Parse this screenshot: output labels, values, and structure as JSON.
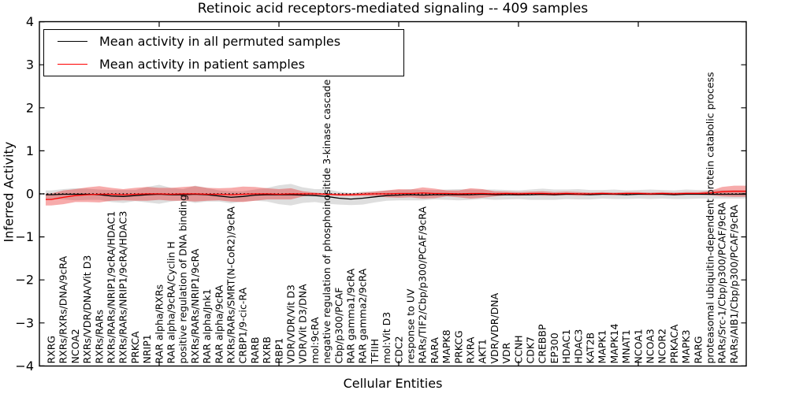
{
  "figure": {
    "title": "Retinoic acid receptors-mediated signaling -- 409 samples",
    "xlabel": "Cellular Entities",
    "ylabel": "Inferred Activity",
    "legend": {
      "items": [
        {
          "label": "Mean activity in all permuted samples",
          "color": "#000000"
        },
        {
          "label": "Mean activity in patient samples",
          "color": "#ff0000"
        }
      ]
    }
  },
  "chart_data": {
    "type": "line",
    "title": "Retinoic acid receptors-mediated signaling -- 409 samples",
    "xlabel": "Cellular Entities",
    "ylabel": "Inferred Activity",
    "ylim": [
      -4,
      4
    ],
    "yticks": [
      4,
      3,
      2,
      1,
      0,
      -1,
      -2,
      -3,
      -4
    ],
    "x_major_ticks": [
      10,
      20,
      30,
      40,
      50
    ],
    "grid": false,
    "legend_position": "upper left",
    "zero_line": {
      "style": "dotted",
      "color": "#000000"
    },
    "categories": [
      "RXRG",
      "RXRs/RXRs/DNA/9cRA",
      "NCOA2",
      "RXRs/VDR/DNA/Vit D3",
      "RXRs/RARs",
      "RXRs/RARs/NRIP1/9cRA/HDAC1",
      "RXRs/RARs/NRIP1/9cRA/HDAC3",
      "PRKCA",
      "NRIP1",
      "RAR alpha/RXRs",
      "RAR alpha/9cRA/Cyclin H",
      "positive regulation of DNA binding",
      "RXRs/RARs/NRIP1/9cRA",
      "RAR alpha/Jnk1",
      "RAR alpha/9cRA",
      "RXRs/RARs/SMRT(N-CoR2)/9cRA",
      "CRBP1/9-cic-RA",
      "RARB",
      "RXRB",
      "RBP1",
      "VDR/VDR/Vit D3",
      "VDR/Vit D3/DNA",
      "mol:9cRA",
      "negative regulation of phosphoinositide 3-kinase cascade",
      "Cbp/p300/PCAF",
      "RAR gamma1/9cRA",
      "RAR gamma2/9cRA",
      "TFIIH",
      "mol:Vit D3",
      "CDC2",
      "response to UV",
      "RARs/TIF2/Cbp/p300/PCAF/9cRA",
      "RARA",
      "MAPK8",
      "PRKCG",
      "RXRA",
      "AKT1",
      "VDR/VDR/DNA",
      "VDR",
      "CCNH",
      "CDK7",
      "CREBBP",
      "EP300",
      "HDAC1",
      "HDAC3",
      "KAT2B",
      "MAPK1",
      "MAPK14",
      "MNAT1",
      "NCOA1",
      "NCOA3",
      "NCOR2",
      "PRKACA",
      "MAPK3",
      "RARG",
      "proteasomal ubiquitin-dependent protein catabolic process",
      "RARs/Src-1/Cbp/p300/PCAF/9cRA",
      "RARs/AIB1/Cbp/p300/PCAF/9cRA"
    ],
    "series": [
      {
        "name": "Mean activity in all permuted samples",
        "color": "#000000",
        "band_color": "#000000",
        "band_opacity": 0.13,
        "mean": [
          -0.02,
          -0.01,
          -0.01,
          -0.01,
          -0.02,
          -0.05,
          -0.06,
          -0.04,
          -0.02,
          -0.01,
          -0.02,
          -0.02,
          -0.01,
          -0.02,
          -0.05,
          -0.08,
          -0.06,
          -0.03,
          -0.02,
          -0.02,
          -0.02,
          -0.03,
          -0.04,
          -0.06,
          -0.1,
          -0.12,
          -0.1,
          -0.07,
          -0.04,
          -0.03,
          -0.02,
          -0.03,
          -0.02,
          -0.02,
          -0.02,
          -0.02,
          -0.01,
          -0.02,
          -0.02,
          -0.02,
          -0.02,
          -0.01,
          -0.02,
          -0.01,
          -0.01,
          -0.02,
          -0.01,
          -0.01,
          -0.02,
          -0.01,
          -0.01,
          -0.01,
          -0.02,
          -0.01,
          -0.01,
          -0.01,
          -0.01,
          -0.01
        ],
        "std": [
          0.1,
          0.12,
          0.14,
          0.13,
          0.12,
          0.14,
          0.15,
          0.13,
          0.18,
          0.22,
          0.16,
          0.13,
          0.2,
          0.16,
          0.13,
          0.14,
          0.12,
          0.13,
          0.16,
          0.22,
          0.25,
          0.18,
          0.15,
          0.17,
          0.15,
          0.14,
          0.15,
          0.13,
          0.12,
          0.12,
          0.13,
          0.12,
          0.11,
          0.12,
          0.13,
          0.12,
          0.11,
          0.12,
          0.11,
          0.1,
          0.12,
          0.13,
          0.12,
          0.11,
          0.12,
          0.11,
          0.1,
          0.11,
          0.1,
          0.1,
          0.11,
          0.1,
          0.1,
          0.11,
          0.1,
          0.1,
          0.1,
          0.1
        ]
      },
      {
        "name": "Mean activity in patient samples",
        "color": "#ff0000",
        "band_color": "#e60000",
        "band_opacity": 0.33,
        "mean": [
          -0.13,
          -0.08,
          -0.04,
          -0.02,
          -0.01,
          -0.01,
          -0.02,
          -0.01,
          0.0,
          0.0,
          -0.01,
          0.0,
          0.0,
          -0.01,
          -0.01,
          -0.02,
          -0.01,
          0.0,
          0.0,
          -0.01,
          0.0,
          0.0,
          0.0,
          -0.01,
          -0.02,
          -0.02,
          -0.01,
          0.0,
          0.0,
          0.01,
          0.01,
          0.02,
          0.01,
          0.01,
          0.0,
          0.01,
          0.01,
          0.0,
          0.01,
          0.0,
          0.01,
          0.01,
          0.0,
          0.01,
          0.0,
          0.0,
          0.01,
          0.0,
          0.01,
          0.01,
          0.0,
          0.01,
          0.0,
          0.01,
          0.01,
          0.02,
          0.05,
          0.06
        ],
        "std": [
          0.14,
          0.16,
          0.15,
          0.17,
          0.19,
          0.15,
          0.13,
          0.15,
          0.16,
          0.14,
          0.15,
          0.16,
          0.18,
          0.15,
          0.14,
          0.16,
          0.18,
          0.16,
          0.13,
          0.12,
          0.13,
          0.06,
          0.03,
          0.02,
          0.03,
          0.03,
          0.04,
          0.05,
          0.08,
          0.1,
          0.09,
          0.13,
          0.11,
          0.07,
          0.08,
          0.12,
          0.1,
          0.06,
          0.04,
          0.04,
          0.04,
          0.05,
          0.04,
          0.04,
          0.04,
          0.03,
          0.03,
          0.03,
          0.03,
          0.03,
          0.03,
          0.03,
          0.03,
          0.03,
          0.03,
          0.05,
          0.11,
          0.13
        ]
      }
    ]
  }
}
